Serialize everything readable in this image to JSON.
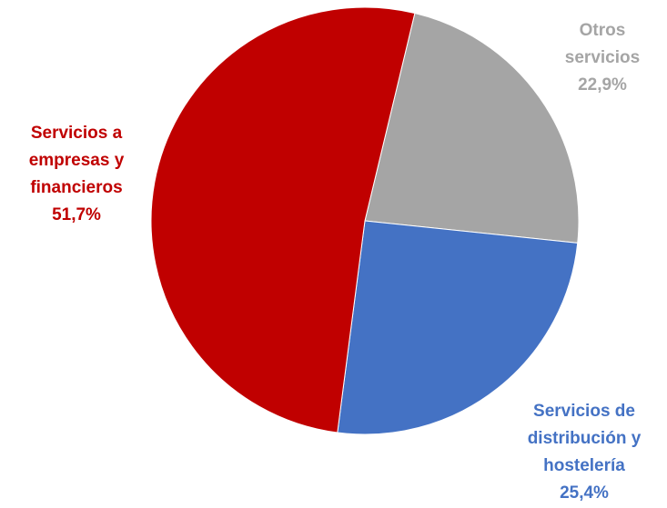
{
  "chart_data": {
    "type": "pie",
    "title": "",
    "slices": [
      {
        "label_lines": [
          "Servicios a",
          "empresas y",
          "financieros"
        ],
        "value_label": "51,7%",
        "value": 51.7,
        "color": "#c00000"
      },
      {
        "label_lines": [
          "Otros",
          "servicios"
        ],
        "value_label": "22,9%",
        "value": 22.9,
        "color": "#a5a5a5"
      },
      {
        "label_lines": [
          "Servicios de",
          "distribución y",
          "hostelería"
        ],
        "value_label": "25,4%",
        "value": 25.4,
        "color": "#4472c4"
      }
    ],
    "legend": "none"
  }
}
